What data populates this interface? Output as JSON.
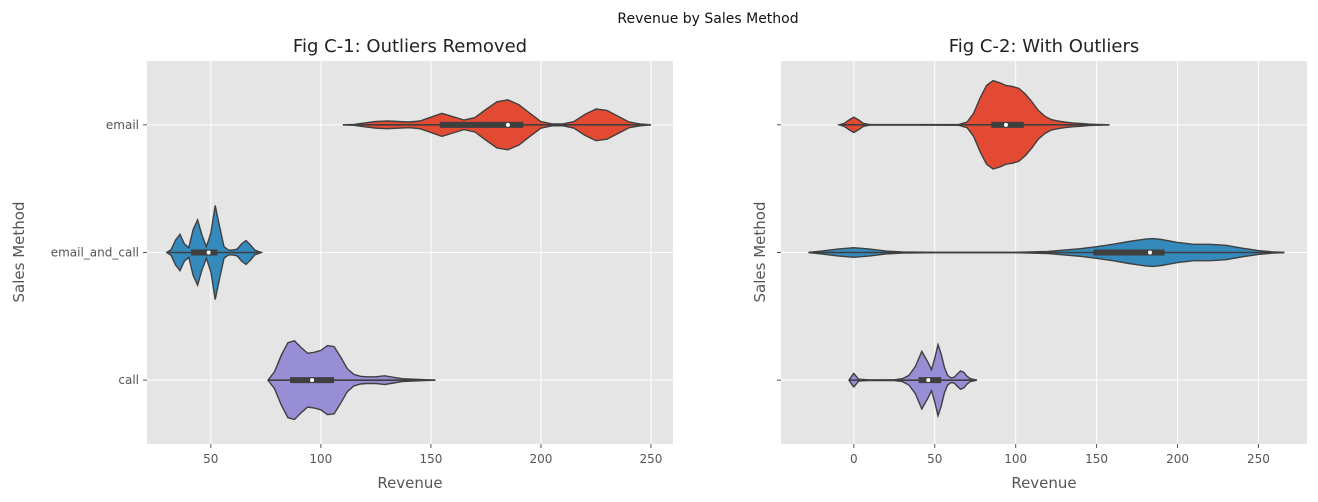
{
  "suptitle": "Revenue by Sales Method",
  "chart_data": [
    {
      "type": "violin",
      "title": "Fig C-1: Outliers Removed",
      "xlabel": "Revenue",
      "ylabel": "Sales Method",
      "xlim": [
        21,
        260
      ],
      "xticks": [
        50,
        100,
        150,
        200,
        250
      ],
      "categories": [
        "email",
        "email_and_call",
        "call"
      ],
      "grid": true,
      "series": [
        {
          "category": "email",
          "color": "#E24A33",
          "min": 110,
          "q1": 154,
          "median": 185,
          "q3": 192,
          "max": 250,
          "density": [
            [
              110,
              0.0
            ],
            [
              115,
              0.01
            ],
            [
              120,
              0.04
            ],
            [
              125,
              0.07
            ],
            [
              130,
              0.08
            ],
            [
              135,
              0.07
            ],
            [
              140,
              0.06
            ],
            [
              145,
              0.08
            ],
            [
              150,
              0.16
            ],
            [
              155,
              0.24
            ],
            [
              160,
              0.17
            ],
            [
              165,
              0.1
            ],
            [
              170,
              0.15
            ],
            [
              175,
              0.32
            ],
            [
              180,
              0.48
            ],
            [
              185,
              0.52
            ],
            [
              190,
              0.42
            ],
            [
              195,
              0.24
            ],
            [
              200,
              0.07
            ],
            [
              205,
              0.02
            ],
            [
              210,
              0.02
            ],
            [
              215,
              0.07
            ],
            [
              220,
              0.22
            ],
            [
              225,
              0.33
            ],
            [
              230,
              0.3
            ],
            [
              235,
              0.18
            ],
            [
              240,
              0.06
            ],
            [
              245,
              0.02
            ],
            [
              250,
              0.0
            ]
          ]
        },
        {
          "category": "email_and_call",
          "color": "#348ABD",
          "min": 30,
          "q1": 41,
          "median": 49,
          "q3": 53,
          "max": 73,
          "density": [
            [
              30,
              0.0
            ],
            [
              32,
              0.06
            ],
            [
              34,
              0.26
            ],
            [
              36,
              0.38
            ],
            [
              38,
              0.18
            ],
            [
              40,
              0.1
            ],
            [
              42,
              0.48
            ],
            [
              44,
              0.68
            ],
            [
              46,
              0.36
            ],
            [
              48,
              0.12
            ],
            [
              50,
              0.4
            ],
            [
              52,
              0.98
            ],
            [
              54,
              0.54
            ],
            [
              56,
              0.12
            ],
            [
              58,
              0.05
            ],
            [
              60,
              0.05
            ],
            [
              62,
              0.07
            ],
            [
              64,
              0.18
            ],
            [
              66,
              0.25
            ],
            [
              68,
              0.16
            ],
            [
              70,
              0.05
            ],
            [
              73,
              0.0
            ]
          ]
        },
        {
          "category": "call",
          "color": "#988ED5",
          "min": 76,
          "q1": 86,
          "median": 96,
          "q3": 106,
          "max": 152,
          "density": [
            [
              76,
              0.0
            ],
            [
              79,
              0.18
            ],
            [
              82,
              0.52
            ],
            [
              85,
              0.78
            ],
            [
              88,
              0.82
            ],
            [
              91,
              0.68
            ],
            [
              94,
              0.56
            ],
            [
              97,
              0.58
            ],
            [
              100,
              0.62
            ],
            [
              103,
              0.72
            ],
            [
              106,
              0.7
            ],
            [
              109,
              0.48
            ],
            [
              112,
              0.24
            ],
            [
              115,
              0.12
            ],
            [
              118,
              0.08
            ],
            [
              121,
              0.07
            ],
            [
              125,
              0.07
            ],
            [
              129,
              0.09
            ],
            [
              133,
              0.06
            ],
            [
              137,
              0.03
            ],
            [
              142,
              0.02
            ],
            [
              147,
              0.01
            ],
            [
              152,
              0.0
            ]
          ]
        }
      ]
    },
    {
      "type": "violin",
      "title": "Fig C-2: With Outliers",
      "xlabel": "Revenue",
      "ylabel": "Sales Method",
      "xlim": [
        -45,
        280
      ],
      "xticks": [
        0,
        50,
        100,
        150,
        200,
        250
      ],
      "categories": [
        "email",
        "email_and_call",
        "call"
      ],
      "grid": true,
      "series": [
        {
          "category": "email",
          "color": "#E24A33",
          "min": -9,
          "q1": 85,
          "median": 94,
          "q3": 105,
          "max": 158,
          "density": [
            [
              -9,
              0.0
            ],
            [
              -6,
              0.03
            ],
            [
              -3,
              0.1
            ],
            [
              0,
              0.16
            ],
            [
              3,
              0.1
            ],
            [
              6,
              0.03
            ],
            [
              10,
              0.005
            ],
            [
              40,
              0.005
            ],
            [
              65,
              0.01
            ],
            [
              70,
              0.06
            ],
            [
              74,
              0.24
            ],
            [
              78,
              0.56
            ],
            [
              82,
              0.82
            ],
            [
              86,
              0.92
            ],
            [
              90,
              0.88
            ],
            [
              94,
              0.82
            ],
            [
              98,
              0.8
            ],
            [
              102,
              0.76
            ],
            [
              106,
              0.64
            ],
            [
              110,
              0.48
            ],
            [
              114,
              0.3
            ],
            [
              118,
              0.18
            ],
            [
              122,
              0.11
            ],
            [
              126,
              0.08
            ],
            [
              130,
              0.06
            ],
            [
              135,
              0.04
            ],
            [
              140,
              0.03
            ],
            [
              145,
              0.015
            ],
            [
              150,
              0.008
            ],
            [
              158,
              0.0
            ]
          ]
        },
        {
          "category": "email_and_call",
          "color": "#348ABD",
          "min": -28,
          "q1": 148,
          "median": 183,
          "q3": 192,
          "max": 266,
          "density": [
            [
              -28,
              0.0
            ],
            [
              -20,
              0.03
            ],
            [
              -10,
              0.07
            ],
            [
              0,
              0.1
            ],
            [
              10,
              0.07
            ],
            [
              20,
              0.03
            ],
            [
              30,
              0.01
            ],
            [
              50,
              0.005
            ],
            [
              100,
              0.005
            ],
            [
              120,
              0.02
            ],
            [
              130,
              0.05
            ],
            [
              140,
              0.08
            ],
            [
              150,
              0.12
            ],
            [
              160,
              0.17
            ],
            [
              170,
              0.23
            ],
            [
              180,
              0.28
            ],
            [
              185,
              0.29
            ],
            [
              190,
              0.27
            ],
            [
              200,
              0.21
            ],
            [
              210,
              0.17
            ],
            [
              220,
              0.17
            ],
            [
              230,
              0.15
            ],
            [
              240,
              0.09
            ],
            [
              250,
              0.04
            ],
            [
              258,
              0.015
            ],
            [
              266,
              0.0
            ]
          ]
        },
        {
          "category": "call",
          "color": "#988ED5",
          "min": -3,
          "q1": 40,
          "median": 46,
          "q3": 54,
          "max": 76,
          "density": [
            [
              -3,
              0.0
            ],
            [
              -1,
              0.1
            ],
            [
              0,
              0.14
            ],
            [
              1,
              0.1
            ],
            [
              3,
              0.02
            ],
            [
              10,
              0.005
            ],
            [
              25,
              0.008
            ],
            [
              30,
              0.03
            ],
            [
              34,
              0.1
            ],
            [
              38,
              0.28
            ],
            [
              40,
              0.44
            ],
            [
              42,
              0.6
            ],
            [
              44,
              0.48
            ],
            [
              46,
              0.36
            ],
            [
              48,
              0.22
            ],
            [
              50,
              0.46
            ],
            [
              52,
              0.74
            ],
            [
              54,
              0.54
            ],
            [
              56,
              0.26
            ],
            [
              58,
              0.1
            ],
            [
              60,
              0.05
            ],
            [
              62,
              0.06
            ],
            [
              64,
              0.13
            ],
            [
              66,
              0.19
            ],
            [
              68,
              0.16
            ],
            [
              70,
              0.08
            ],
            [
              72,
              0.03
            ],
            [
              76,
              0.0
            ]
          ]
        }
      ]
    }
  ]
}
